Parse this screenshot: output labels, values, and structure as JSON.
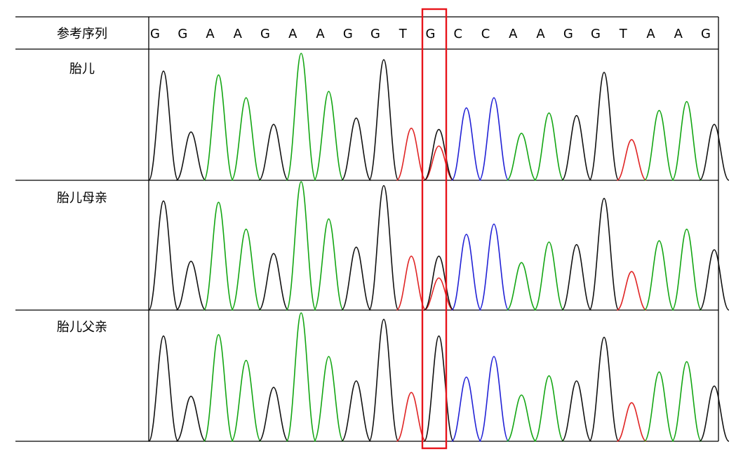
{
  "header_label": "参考序列",
  "reference_sequence": [
    "G",
    "G",
    "A",
    "A",
    "G",
    "A",
    "A",
    "G",
    "G",
    "T",
    "G",
    "C",
    "C",
    "A",
    "A",
    "G",
    "G",
    "T",
    "A",
    "A",
    "G"
  ],
  "samples": [
    {
      "label": "胎儿",
      "peaks": [
        {
          "base": "G",
          "h": 0.86
        },
        {
          "base": "G",
          "h": 0.38
        },
        {
          "base": "A",
          "h": 0.83
        },
        {
          "base": "A",
          "h": 0.65
        },
        {
          "base": "G",
          "h": 0.44
        },
        {
          "base": "A",
          "h": 1.0
        },
        {
          "base": "A",
          "h": 0.7
        },
        {
          "base": "G",
          "h": 0.49
        },
        {
          "base": "G",
          "h": 0.95
        },
        {
          "base": "T",
          "h": 0.41
        },
        {
          "base": "G",
          "h": 0.4,
          "second": {
            "base": "T",
            "h": 0.27
          }
        },
        {
          "base": "C",
          "h": 0.57
        },
        {
          "base": "C",
          "h": 0.65
        },
        {
          "base": "A",
          "h": 0.37
        },
        {
          "base": "A",
          "h": 0.53
        },
        {
          "base": "G",
          "h": 0.51
        },
        {
          "base": "G",
          "h": 0.85
        },
        {
          "base": "T",
          "h": 0.32
        },
        {
          "base": "A",
          "h": 0.55
        },
        {
          "base": "A",
          "h": 0.62
        },
        {
          "base": "G",
          "h": 0.44
        }
      ]
    },
    {
      "label": "胎儿母亲",
      "peaks": [
        {
          "base": "G",
          "h": 0.85
        },
        {
          "base": "G",
          "h": 0.38
        },
        {
          "base": "A",
          "h": 0.84
        },
        {
          "base": "A",
          "h": 0.63
        },
        {
          "base": "G",
          "h": 0.44
        },
        {
          "base": "A",
          "h": 1.0
        },
        {
          "base": "A",
          "h": 0.71
        },
        {
          "base": "G",
          "h": 0.49
        },
        {
          "base": "G",
          "h": 0.97
        },
        {
          "base": "T",
          "h": 0.42
        },
        {
          "base": "G",
          "h": 0.42,
          "second": {
            "base": "T",
            "h": 0.25
          }
        },
        {
          "base": "C",
          "h": 0.59
        },
        {
          "base": "C",
          "h": 0.67
        },
        {
          "base": "A",
          "h": 0.37
        },
        {
          "base": "A",
          "h": 0.53
        },
        {
          "base": "G",
          "h": 0.51
        },
        {
          "base": "G",
          "h": 0.87
        },
        {
          "base": "T",
          "h": 0.3
        },
        {
          "base": "A",
          "h": 0.54
        },
        {
          "base": "A",
          "h": 0.63
        },
        {
          "base": "G",
          "h": 0.47
        }
      ]
    },
    {
      "label": "胎儿父亲",
      "peaks": [
        {
          "base": "G",
          "h": 0.82
        },
        {
          "base": "G",
          "h": 0.35
        },
        {
          "base": "A",
          "h": 0.83
        },
        {
          "base": "A",
          "h": 0.63
        },
        {
          "base": "G",
          "h": 0.42
        },
        {
          "base": "A",
          "h": 1.0
        },
        {
          "base": "A",
          "h": 0.66
        },
        {
          "base": "G",
          "h": 0.47
        },
        {
          "base": "G",
          "h": 0.95
        },
        {
          "base": "T",
          "h": 0.38
        },
        {
          "base": "G",
          "h": 0.82
        },
        {
          "base": "C",
          "h": 0.5
        },
        {
          "base": "C",
          "h": 0.66
        },
        {
          "base": "A",
          "h": 0.36
        },
        {
          "base": "A",
          "h": 0.51
        },
        {
          "base": "G",
          "h": 0.47
        },
        {
          "base": "G",
          "h": 0.81
        },
        {
          "base": "T",
          "h": 0.3
        },
        {
          "base": "A",
          "h": 0.54
        },
        {
          "base": "A",
          "h": 0.62
        },
        {
          "base": "G",
          "h": 0.43
        }
      ]
    }
  ],
  "highlight": {
    "position_index": 10,
    "color": "#e8141b"
  },
  "base_colors": {
    "G": "#111111",
    "A": "#13a613",
    "T": "#e02424",
    "C": "#2121d6"
  }
}
